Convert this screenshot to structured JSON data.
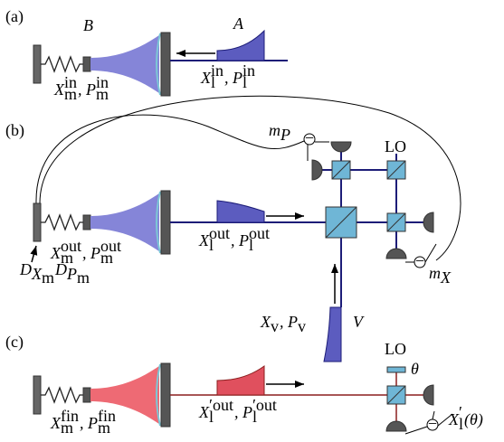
{
  "panels": [
    {
      "label": "(a)",
      "mode_label": "B",
      "pulse_label": "A",
      "mirror_quadratures": [
        {
          "text": "X",
          "sub": "m",
          "sup": "in"
        },
        {
          "text": ", P",
          "sub": "m",
          "sup": "in"
        }
      ],
      "light_quadratures": [
        {
          "text": "X",
          "sub": "l",
          "sup": "in"
        },
        {
          "text": ", P",
          "sub": "l",
          "sup": "in"
        }
      ]
    },
    {
      "label": "(b)",
      "mirror_quadratures": [
        {
          "text": "X",
          "sub": "m",
          "sup": "out"
        },
        {
          "text": ", P",
          "sub": "m",
          "sup": "out"
        }
      ],
      "light_quadratures": [
        {
          "text": "X",
          "sub": "l",
          "sup": "out"
        },
        {
          "text": ", P",
          "sub": "l",
          "sup": "out"
        }
      ],
      "feedback_label": [
        {
          "text": "D",
          "sub": "X",
          "subsub": "m"
        },
        {
          "text": "D",
          "sub": "P",
          "subsub": "m"
        }
      ],
      "measurement_p": [
        {
          "text": "m",
          "sub": "P"
        }
      ],
      "measurement_x": [
        {
          "text": "m",
          "sub": "X"
        }
      ],
      "local_oscillator": "LO",
      "vacuum_quadratures": [
        {
          "text": "X",
          "sub": "v"
        },
        {
          "text": ", P",
          "sub": "v"
        }
      ],
      "vacuum_label": "V",
      "subtraction_sign": "−"
    },
    {
      "label": "(c)",
      "mirror_quadratures": [
        {
          "text": "X",
          "sub": "m",
          "sup": "fin"
        },
        {
          "text": ", P",
          "sub": "m",
          "sup": "fin"
        }
      ],
      "light_quadratures": [
        {
          "text": "X",
          "sub": "l",
          "sup": "′out"
        },
        {
          "text": ", P",
          "sub": "l",
          "sup": "′out"
        }
      ],
      "local_oscillator": "LO",
      "phase_label": "θ",
      "output": [
        {
          "text": "X",
          "sub": "l",
          "sup": "′"
        },
        {
          "text": "(θ)"
        }
      ],
      "subtraction_sign": "−"
    }
  ]
}
